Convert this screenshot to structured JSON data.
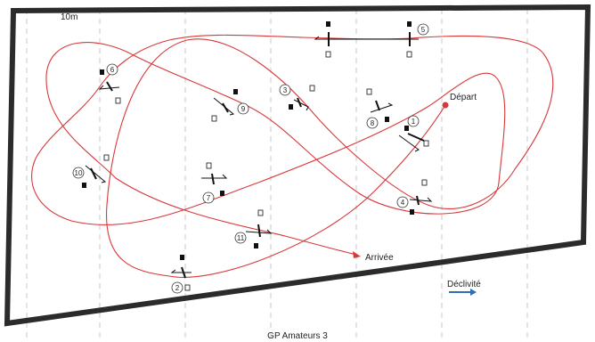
{
  "scale_label": "10m",
  "start_label": "Départ",
  "finish_label": "Arrivée",
  "slope_label": "Déclivité",
  "caption": "GP Amateurs 3",
  "jump_numbers": [
    "1",
    "2",
    "3",
    "4",
    "5",
    "6",
    "7",
    "8",
    "9",
    "10",
    "11"
  ],
  "colors": {
    "arena_border": "#2b2b2b",
    "course_line": "#d9383a",
    "start_dot": "#d9383a",
    "slope_arrow": "#2f6db6",
    "grid_dashes": "#c8c8c8"
  },
  "icons": [
    "start-dot-icon",
    "finish-arrow-icon",
    "slope-arrow-icon",
    "jump-stand-icon"
  ]
}
